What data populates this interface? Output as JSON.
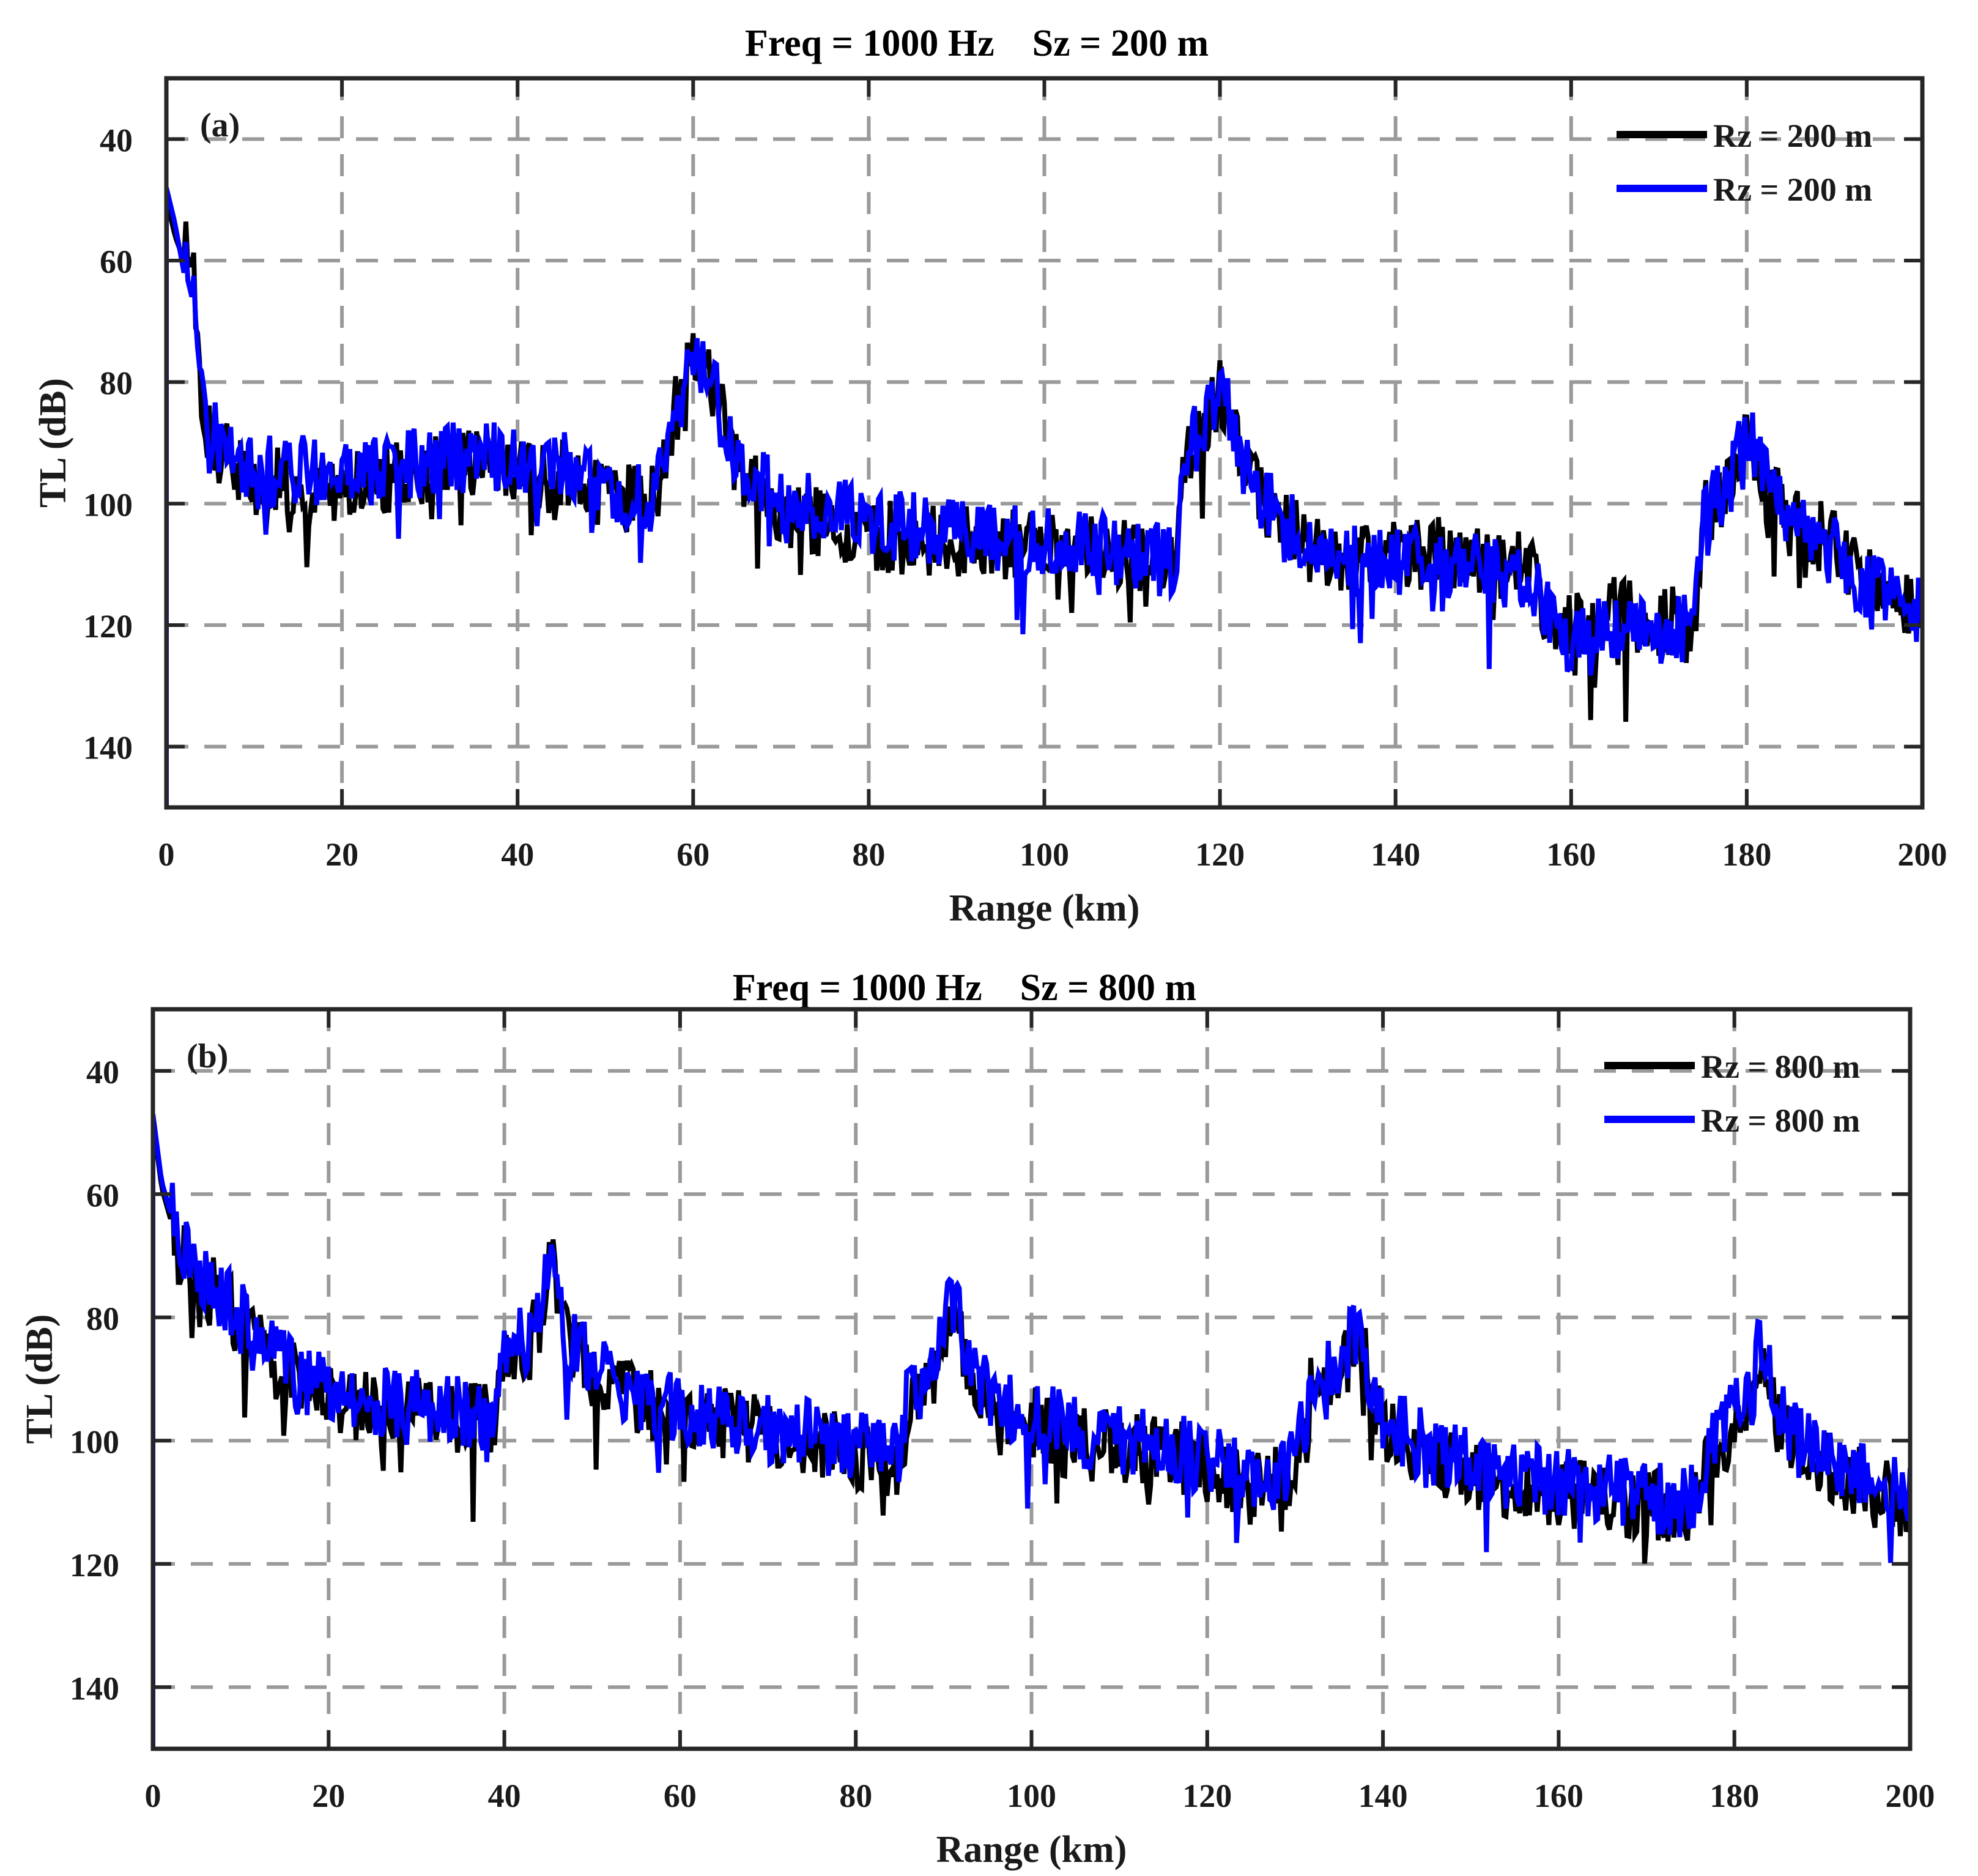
{
  "chart_data": [
    {
      "type": "line",
      "panel_label": "(a)",
      "title": "Freq = 1000 Hz    Sz = 200 m",
      "xlabel": "Range (km)",
      "ylabel": "TL (dB)",
      "xlim": [
        0,
        200
      ],
      "ylim": [
        30,
        150
      ],
      "y_reversed": true,
      "grid": true,
      "legend_position": "upper right",
      "xticks": [
        0,
        20,
        40,
        60,
        80,
        100,
        120,
        140,
        160,
        180,
        200
      ],
      "yticks": [
        40,
        60,
        80,
        100,
        120,
        140
      ],
      "x": [
        0,
        1,
        2,
        3,
        4,
        5,
        10,
        15,
        20,
        25,
        30,
        35,
        40,
        45,
        50,
        55,
        58,
        60,
        62,
        65,
        70,
        75,
        80,
        85,
        90,
        95,
        100,
        105,
        110,
        115,
        116,
        118,
        120,
        122,
        125,
        130,
        135,
        140,
        145,
        150,
        155,
        158,
        160,
        165,
        170,
        174,
        175,
        178,
        180,
        182,
        185,
        190,
        195,
        200
      ],
      "series": [
        {
          "name": "Rz = 200 m",
          "color": "#000000",
          "values": [
            50,
            56,
            60,
            58,
            80,
            90,
            97,
            96,
            97,
            96,
            94,
            93,
            95,
            96,
            97,
            101,
            85,
            76,
            80,
            94,
            101,
            103,
            105,
            106,
            106,
            107,
            106,
            108,
            108,
            111,
            94,
            89,
            82,
            91,
            101,
            107,
            109,
            109,
            108,
            109,
            111,
            118,
            121,
            118,
            120,
            119,
            101,
            98,
            90,
            96,
            102,
            107,
            114,
            117
          ]
        },
        {
          "name": "Rz = 200 m",
          "color": "#0000ff",
          "values": [
            48,
            54,
            62,
            66,
            80,
            88,
            95,
            94,
            95,
            94,
            93,
            92,
            93,
            94,
            96,
            100,
            84,
            74,
            80,
            93,
            100,
            101,
            103,
            104,
            104,
            106,
            106,
            107,
            108,
            110,
            92,
            88,
            80,
            90,
            100,
            106,
            109,
            110,
            110,
            111,
            113,
            118,
            122,
            121,
            121,
            120,
            101,
            97,
            88,
            96,
            103,
            108,
            115,
            118
          ]
        }
      ]
    },
    {
      "type": "line",
      "panel_label": "(b)",
      "title": "Freq = 1000 Hz    Sz = 800 m",
      "xlabel": "Range (km)",
      "ylabel": "TL (dB)",
      "xlim": [
        0,
        200
      ],
      "ylim": [
        30,
        150
      ],
      "y_reversed": true,
      "grid": true,
      "legend_position": "upper right",
      "xticks": [
        0,
        20,
        40,
        60,
        80,
        100,
        120,
        140,
        160,
        180,
        200
      ],
      "yticks": [
        40,
        60,
        80,
        100,
        120,
        140
      ],
      "x": [
        0,
        1,
        3,
        5,
        8,
        10,
        12,
        15,
        20,
        25,
        30,
        35,
        39,
        40,
        42,
        44,
        45.5,
        47,
        50,
        55,
        60,
        65,
        70,
        75,
        80,
        85,
        86,
        89,
        91,
        93,
        95,
        100,
        105,
        110,
        115,
        120,
        125,
        130,
        132,
        135,
        137,
        139,
        140,
        145,
        150,
        155,
        160,
        165,
        170,
        175,
        178,
        180,
        182,
        183,
        185,
        190,
        195,
        200
      ],
      "series": [
        {
          "name": "Rz = 800 m",
          "color": "#000000",
          "values": [
            48,
            59,
            69,
            74,
            77,
            81,
            85,
            89,
            94,
            95,
            95,
            96,
            97,
            86,
            85,
            81,
            71,
            84,
            89,
            93,
            96,
            97,
            99,
            100,
            102,
            104,
            93,
            89,
            77,
            89,
            93,
            97,
            99,
            101,
            102,
            104,
            108,
            105,
            91,
            89,
            81,
            93,
            97,
            102,
            105,
            107,
            108,
            109,
            110,
            111,
            101,
            97,
            93,
            85,
            97,
            104,
            107,
            111
          ]
        },
        {
          "name": "Rz = 800 m",
          "color": "#0000ff",
          "values": [
            47,
            58,
            68,
            73,
            76,
            80,
            84,
            88,
            92,
            94,
            94,
            95,
            96,
            85,
            84,
            80,
            70,
            83,
            88,
            92,
            95,
            96,
            98,
            99,
            101,
            103,
            92,
            88,
            76,
            88,
            92,
            96,
            98,
            100,
            101,
            103,
            107,
            104,
            90,
            88,
            80,
            92,
            96,
            101,
            104,
            106,
            107,
            108,
            109,
            110,
            100,
            96,
            92,
            84,
            96,
            103,
            106,
            110
          ]
        }
      ]
    }
  ],
  "panels": [
    {
      "title": "Freq = 1000 Hz    Sz = 200 m",
      "label": "(a)",
      "xlabel": "Range (km)",
      "ylabel": "TL (dB)",
      "legend": [
        "Rz = 200 m",
        "Rz = 200 m"
      ]
    },
    {
      "title": "Freq = 1000 Hz    Sz = 800 m",
      "label": "(b)",
      "xlabel": "Range (km)",
      "ylabel": "TL (dB)",
      "legend": [
        "Rz = 800 m",
        "Rz = 800 m"
      ]
    }
  ]
}
